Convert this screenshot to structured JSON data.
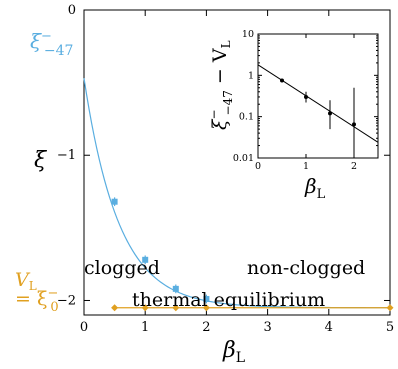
{
  "colors": {
    "xi_series": "#5aaee0",
    "vl_series": "#e0a020",
    "axis": "#000000",
    "inset_line": "#000000"
  },
  "chart_data": [
    {
      "type": "line",
      "xlabel": "β",
      "xlabel_sub": "L",
      "ylabel": "ξ",
      "xlim": [
        0,
        5
      ],
      "ylim": [
        -2.1,
        0
      ],
      "x_ticks": [
        "0",
        "1",
        "2",
        "3",
        "4",
        "5"
      ],
      "y_ticks": [
        "0",
        "−1",
        "−2"
      ],
      "series": [
        {
          "x": [
            0.5,
            1.0,
            1.5,
            2.0
          ],
          "y": [
            -1.32,
            -1.72,
            -1.92,
            -1.99
          ],
          "error": [
            0.03,
            0.03,
            0.03,
            0.03
          ],
          "fit_curve": "exponential decay from y≈−0.47 at x=0 toward −2.05",
          "label": "ξ",
          "label_sup": "−",
          "label_sub": "−47"
        },
        {
          "x": [
            0.5,
            1.0,
            1.5,
            2.0,
            5.0
          ],
          "y": [
            -2.05,
            -2.05,
            -2.05,
            -2.05,
            -2.05
          ],
          "label_lines": [
            "V",
            "= ξ"
          ],
          "label_v_sub": "L",
          "label_xi_sup": "−",
          "label_xi_sub": "0"
        }
      ],
      "annotations": [
        "clogged",
        "non-clogged",
        "thermal equilibrium"
      ]
    },
    {
      "type": "scatter",
      "xlabel": "β",
      "xlabel_sub": "L",
      "ylabel": "ξ",
      "ylabel_sup": "−",
      "ylabel_sub": "−47",
      "ylabel_tail": " − V",
      "ylabel_tail_sub": "L",
      "yscale": "log",
      "xlim": [
        0,
        2.5
      ],
      "ylim": [
        0.01,
        10
      ],
      "x_ticks": [
        "0",
        "1",
        "2"
      ],
      "y_ticks": [
        "10",
        "1",
        "0.1",
        "0.01"
      ],
      "points": [
        {
          "x": 0.5,
          "y": 0.75,
          "err_low": 0.7,
          "err_high": 0.8
        },
        {
          "x": 1.0,
          "y": 0.3,
          "err_low": 0.22,
          "err_high": 0.4
        },
        {
          "x": 1.5,
          "y": 0.12,
          "err_low": 0.05,
          "err_high": 0.25
        },
        {
          "x": 2.0,
          "y": 0.065,
          "err_low": 0.01,
          "err_high": 0.5
        }
      ],
      "fit_line": {
        "x": [
          0,
          2.5
        ],
        "y": [
          1.8,
          0.024
        ]
      }
    }
  ]
}
